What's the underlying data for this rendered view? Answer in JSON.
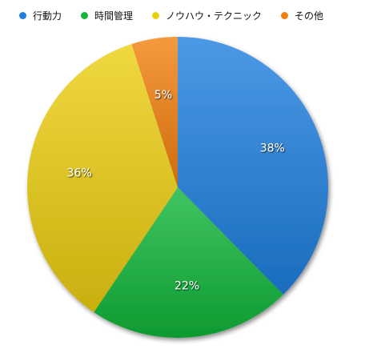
{
  "chart_data": {
    "type": "pie",
    "categories": [
      "行動力",
      "時間管理",
      "ノウハウ・テクニック",
      "その他"
    ],
    "values": [
      38,
      22,
      36,
      5
    ],
    "labels": [
      "38%",
      "22%",
      "36%",
      "5%"
    ],
    "colors": [
      "#1f7fe0",
      "#10b53a",
      "#ecce10",
      "#f27f0f"
    ],
    "legend_position": "top"
  }
}
